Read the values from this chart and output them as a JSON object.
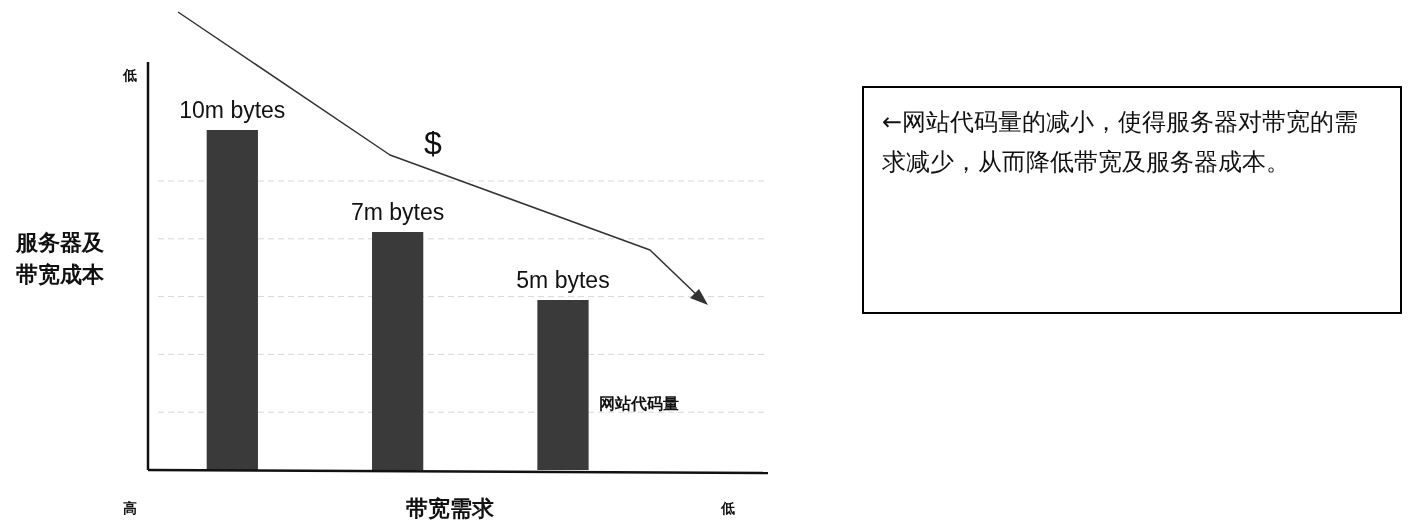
{
  "chart_data": {
    "type": "bar",
    "xlabel": "带宽需求",
    "ylabel": "服务器及带宽成本",
    "categories": [
      null,
      null,
      null
    ],
    "series": [
      {
        "name": "网站代码量",
        "color": "#3a3a3a",
        "values": [
          10,
          7,
          5
        ],
        "value_labels": [
          "10m bytes",
          "7m bytes",
          "5m bytes"
        ]
      }
    ],
    "ylim": [
      0,
      12
    ],
    "yticks": [
      {
        "value": 1.7,
        "label": null
      },
      {
        "value": 3.4,
        "label": null
      },
      {
        "value": 5.1,
        "label": null
      },
      {
        "value": 6.8,
        "label": null
      },
      {
        "value": 8.5,
        "label": null
      }
    ],
    "grid": "y",
    "annotations": [
      "低",
      "高",
      "低",
      "$",
      "←网站代码量的减小，使得服务器对带宽的需求减少，从而降低带宽及服务器成本。"
    ]
  }
}
